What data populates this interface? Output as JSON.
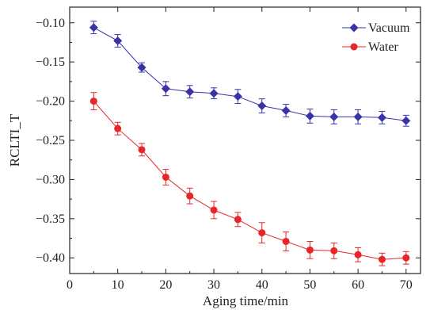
{
  "chart_data": {
    "type": "line",
    "title": "",
    "xlabel": "Aging time/min",
    "ylabel": "RCLTI_T",
    "xlim": [
      0,
      73
    ],
    "ylim": [
      -0.42,
      -0.08
    ],
    "xticks": [
      0,
      10,
      20,
      30,
      40,
      50,
      60,
      70
    ],
    "yticks": [
      -0.1,
      -0.15,
      -0.2,
      -0.25,
      -0.3,
      -0.35,
      -0.4
    ],
    "xtick_labels": [
      "0",
      "10",
      "20",
      "30",
      "40",
      "50",
      "60",
      "70"
    ],
    "ytick_labels": [
      "−0.10",
      "−0.15",
      "−0.20",
      "−0.25",
      "−0.30",
      "−0.35",
      "−0.40"
    ],
    "grid": false,
    "legend_position": "top-right",
    "series": [
      {
        "name": "Vacuum",
        "color": "#3a33a8",
        "marker": "diamond",
        "x": [
          5,
          10,
          15,
          20,
          25,
          30,
          35,
          40,
          45,
          50,
          55,
          60,
          65,
          70
        ],
        "values": [
          -0.106,
          -0.123,
          -0.157,
          -0.184,
          -0.188,
          -0.19,
          -0.194,
          -0.206,
          -0.212,
          -0.219,
          -0.22,
          -0.22,
          -0.221,
          -0.225
        ],
        "error": [
          0.008,
          0.008,
          0.006,
          0.009,
          0.008,
          0.007,
          0.009,
          0.009,
          0.008,
          0.009,
          0.009,
          0.009,
          0.008,
          0.007
        ]
      },
      {
        "name": "Water",
        "color": "#e8262a",
        "marker": "circle",
        "x": [
          5,
          10,
          15,
          20,
          25,
          30,
          35,
          40,
          45,
          50,
          55,
          60,
          65,
          70
        ],
        "values": [
          -0.2,
          -0.235,
          -0.262,
          -0.297,
          -0.321,
          -0.339,
          -0.351,
          -0.368,
          -0.379,
          -0.39,
          -0.391,
          -0.396,
          -0.402,
          -0.4
        ],
        "error": [
          0.011,
          0.008,
          0.008,
          0.01,
          0.01,
          0.011,
          0.009,
          0.013,
          0.012,
          0.011,
          0.01,
          0.009,
          0.008,
          0.008
        ]
      }
    ]
  }
}
